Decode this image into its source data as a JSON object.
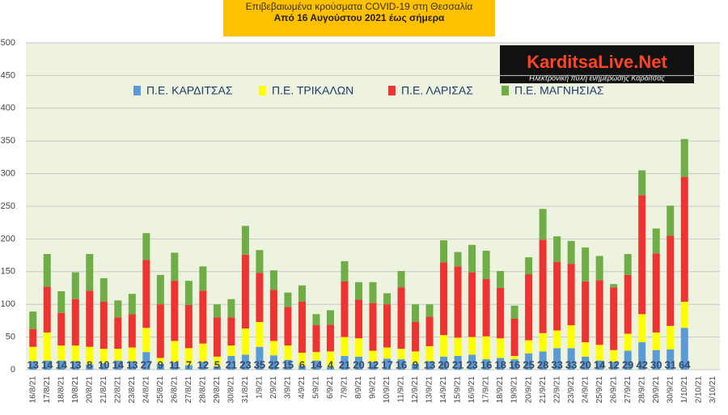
{
  "chart_data": {
    "type": "stacked_bar",
    "title": "Επιβεβαιωμένα κρούσματα COVID-19 στη Θεσσαλία",
    "subtitle": "Από 16 Αυγούστου 2021 έως σήμερα",
    "categories": [
      "16/8/21",
      "17/8/21",
      "18/8/21",
      "19/8/21",
      "20/8/21",
      "21/8/21",
      "22/8/21",
      "23/8/21",
      "24/8/21",
      "25/8/21",
      "26/8/21",
      "27/8/21",
      "28/8/21",
      "29/8/21",
      "30/8/21",
      "31/8/21",
      "1/9/21",
      "2/9/21",
      "3/9/21",
      "4/9/21",
      "5/9/21",
      "6/9/21",
      "7/9/21",
      "8/9/21",
      "9/9/21",
      "10/9/21",
      "11/9/21",
      "12/9/21",
      "13/9/21",
      "14/9/21",
      "15/9/21",
      "16/9/21",
      "17/9/21",
      "18/9/21",
      "19/9/21",
      "20/9/21",
      "21/9/21",
      "22/9/21",
      "23/9/21",
      "24/9/21",
      "25/9/21",
      "26/9/21",
      "27/9/21",
      "28/9/21",
      "29/9/21",
      "30/9/21",
      "1/10/21",
      "2/10/21",
      "3/10/21"
    ],
    "series": [
      {
        "name": "Π.Ε. ΚΑΡΔΙΤΣΑΣ",
        "color": "#5b9bd5",
        "values": [
          13,
          14,
          14,
          13,
          8,
          10,
          14,
          13,
          27,
          9,
          11,
          7,
          12,
          5,
          21,
          23,
          35,
          22,
          15,
          6,
          14,
          4,
          21,
          20,
          12,
          17,
          16,
          9,
          13,
          20,
          21,
          23,
          16,
          18,
          16,
          25,
          28,
          33,
          33,
          20,
          14,
          12,
          29,
          42,
          30,
          31,
          64,
          null,
          null
        ]
      },
      {
        "name": "Π.Ε. ΤΡΙΚΑΛΩΝ",
        "color": "#ffff00",
        "values": [
          22,
          43,
          23,
          24,
          27,
          22,
          18,
          21,
          37,
          9,
          33,
          26,
          28,
          15,
          16,
          40,
          38,
          22,
          22,
          20,
          13,
          24,
          29,
          28,
          17,
          17,
          16,
          19,
          23,
          33,
          28,
          27,
          35,
          30,
          5,
          20,
          28,
          27,
          35,
          22,
          24,
          18,
          26,
          43,
          27,
          36,
          40,
          null,
          null
        ]
      },
      {
        "name": "Π.Ε. ΛΑΡΙΣΑΣ",
        "color": "#ee3333",
        "values": [
          27,
          70,
          50,
          71,
          86,
          72,
          48,
          51,
          104,
          82,
          92,
          66,
          81,
          60,
          43,
          113,
          75,
          78,
          59,
          78,
          41,
          41,
          85,
          59,
          73,
          66,
          94,
          45,
          45,
          111,
          109,
          99,
          88,
          77,
          57,
          101,
          143,
          105,
          94,
          93,
          99,
          96,
          90,
          182,
          121,
          138,
          191,
          null,
          null
        ]
      },
      {
        "name": "Π.Ε. ΜΑΓΝΗΣΙΑΣ",
        "color": "#70ad47",
        "values": [
          27,
          50,
          33,
          41,
          56,
          36,
          26,
          31,
          41,
          45,
          43,
          37,
          37,
          20,
          28,
          44,
          35,
          30,
          22,
          25,
          17,
          22,
          31,
          27,
          32,
          17,
          25,
          27,
          19,
          34,
          22,
          42,
          43,
          26,
          20,
          26,
          47,
          39,
          35,
          52,
          37,
          5,
          32,
          38,
          38,
          46,
          58,
          null,
          null
        ]
      }
    ],
    "ylim": [
      0,
      500
    ],
    "yticks": [
      0,
      50,
      100,
      150,
      200,
      250,
      300,
      350,
      400,
      450,
      500
    ],
    "grid": true
  },
  "logo": {
    "title": "KarditsaLive.Net",
    "subtitle": "Ηλεκτρονική πύλη ενημέρωσης Καρδίτσας"
  }
}
